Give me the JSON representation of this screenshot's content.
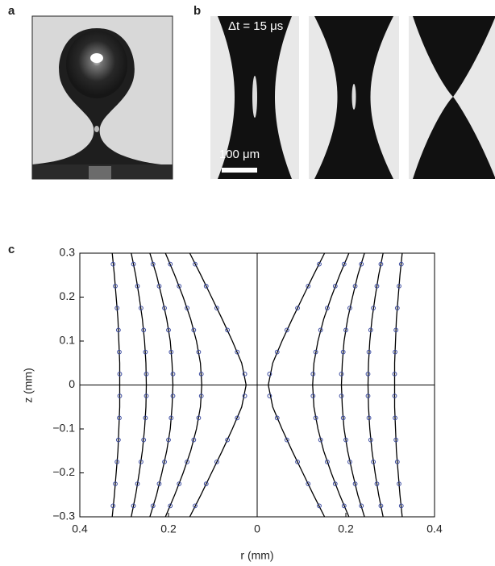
{
  "panels": {
    "a": {
      "label": "a"
    },
    "b": {
      "label": "b",
      "annotation": "Δt = 15 μs",
      "scale_bar": "100 μm"
    }
  },
  "chart_data": {
    "type": "scatter",
    "label": "c",
    "x_label": "r (mm)",
    "y_label": "z (mm)",
    "xlim": [
      -0.4,
      0.4
    ],
    "ylim": [
      -0.3,
      0.3
    ],
    "xticks": [
      {
        "value": -0.4,
        "label": "0.4"
      },
      {
        "value": -0.2,
        "label": "0.2"
      },
      0,
      0.2,
      0.4
    ],
    "yticks": [
      {
        "value": -0.3,
        "label": "−0.3"
      },
      {
        "value": -0.2,
        "label": "−0.2"
      },
      {
        "value": -0.1,
        "label": "−0.1"
      },
      0,
      0.1,
      0.2,
      0.3
    ],
    "grid": false,
    "series": [
      {
        "style": "line",
        "color": "#000000",
        "x": [
          -0.152,
          -0.127,
          -0.103,
          -0.079,
          -0.056,
          -0.035,
          -0.025,
          -0.035,
          -0.056,
          -0.079,
          -0.103,
          -0.127,
          -0.152
        ],
        "y": [
          -0.3,
          -0.25,
          -0.2,
          -0.15,
          -0.1,
          -0.05,
          0,
          0.05,
          0.1,
          0.15,
          0.2,
          0.25,
          0.3
        ]
      },
      {
        "style": "line",
        "color": "#000000",
        "x": [
          -0.207,
          -0.186,
          -0.167,
          -0.15,
          -0.137,
          -0.128,
          -0.125,
          -0.128,
          -0.137,
          -0.15,
          -0.167,
          -0.186,
          -0.207
        ],
        "y": [
          -0.3,
          -0.25,
          -0.2,
          -0.15,
          -0.1,
          -0.05,
          0,
          0.05,
          0.1,
          0.15,
          0.2,
          0.25,
          0.3
        ]
      },
      {
        "style": "line",
        "color": "#000000",
        "x": [
          -0.242,
          -0.227,
          -0.215,
          -0.204,
          -0.196,
          -0.192,
          -0.19,
          -0.192,
          -0.196,
          -0.204,
          -0.215,
          -0.227,
          -0.242
        ],
        "y": [
          -0.3,
          -0.25,
          -0.2,
          -0.15,
          -0.1,
          -0.05,
          0,
          0.05,
          0.1,
          0.15,
          0.2,
          0.25,
          0.3
        ]
      },
      {
        "style": "line",
        "color": "#000000",
        "x": [
          -0.284,
          -0.274,
          -0.266,
          -0.259,
          -0.254,
          -0.251,
          -0.25,
          -0.251,
          -0.254,
          -0.259,
          -0.266,
          -0.274,
          -0.284
        ],
        "y": [
          -0.3,
          -0.25,
          -0.2,
          -0.15,
          -0.1,
          -0.05,
          0,
          0.05,
          0.1,
          0.15,
          0.2,
          0.25,
          0.3
        ]
      },
      {
        "style": "line",
        "color": "#000000",
        "x": [
          -0.327,
          -0.322,
          -0.318,
          -0.314,
          -0.312,
          -0.31,
          -0.31,
          -0.31,
          -0.312,
          -0.314,
          -0.318,
          -0.322,
          -0.327
        ],
        "y": [
          -0.3,
          -0.25,
          -0.2,
          -0.15,
          -0.1,
          -0.05,
          0,
          0.05,
          0.1,
          0.15,
          0.2,
          0.25,
          0.3
        ]
      },
      {
        "style": "line",
        "color": "#000000",
        "x": [
          0.152,
          0.127,
          0.103,
          0.079,
          0.056,
          0.035,
          0.025,
          0.035,
          0.056,
          0.079,
          0.103,
          0.127,
          0.152
        ],
        "y": [
          -0.3,
          -0.25,
          -0.2,
          -0.15,
          -0.1,
          -0.05,
          0,
          0.05,
          0.1,
          0.15,
          0.2,
          0.25,
          0.3
        ]
      },
      {
        "style": "line",
        "color": "#000000",
        "x": [
          0.207,
          0.186,
          0.167,
          0.15,
          0.137,
          0.128,
          0.125,
          0.128,
          0.137,
          0.15,
          0.167,
          0.186,
          0.207
        ],
        "y": [
          -0.3,
          -0.25,
          -0.2,
          -0.15,
          -0.1,
          -0.05,
          0,
          0.05,
          0.1,
          0.15,
          0.2,
          0.25,
          0.3
        ]
      },
      {
        "style": "line",
        "color": "#000000",
        "x": [
          0.242,
          0.227,
          0.215,
          0.204,
          0.196,
          0.192,
          0.19,
          0.192,
          0.196,
          0.204,
          0.215,
          0.227,
          0.242
        ],
        "y": [
          -0.3,
          -0.25,
          -0.2,
          -0.15,
          -0.1,
          -0.05,
          0,
          0.05,
          0.1,
          0.15,
          0.2,
          0.25,
          0.3
        ]
      },
      {
        "style": "line",
        "color": "#000000",
        "x": [
          0.284,
          0.274,
          0.266,
          0.259,
          0.254,
          0.251,
          0.25,
          0.251,
          0.254,
          0.259,
          0.266,
          0.274,
          0.284
        ],
        "y": [
          -0.3,
          -0.25,
          -0.2,
          -0.15,
          -0.1,
          -0.05,
          0,
          0.05,
          0.1,
          0.15,
          0.2,
          0.25,
          0.3
        ]
      },
      {
        "style": "line",
        "color": "#000000",
        "x": [
          0.327,
          0.322,
          0.318,
          0.314,
          0.312,
          0.31,
          0.31,
          0.31,
          0.312,
          0.314,
          0.318,
          0.322,
          0.327
        ],
        "y": [
          -0.3,
          -0.25,
          -0.2,
          -0.15,
          -0.1,
          -0.05,
          0,
          0.05,
          0.1,
          0.15,
          0.2,
          0.25,
          0.3
        ]
      },
      {
        "style": "marker",
        "color": "#3b4ba0",
        "x": [
          -0.14,
          -0.115,
          -0.091,
          -0.067,
          -0.045,
          -0.028,
          -0.028,
          -0.045,
          -0.067,
          -0.091,
          -0.115,
          -0.14
        ],
        "y": [
          -0.275,
          -0.225,
          -0.175,
          -0.125,
          -0.075,
          -0.025,
          0.025,
          0.075,
          0.125,
          0.175,
          0.225,
          0.275
        ]
      },
      {
        "style": "marker",
        "color": "#3b4ba0",
        "x": [
          -0.196,
          -0.176,
          -0.158,
          -0.143,
          -0.132,
          -0.126,
          -0.126,
          -0.132,
          -0.143,
          -0.158,
          -0.176,
          -0.196
        ],
        "y": [
          -0.275,
          -0.225,
          -0.175,
          -0.125,
          -0.075,
          -0.025,
          0.025,
          0.075,
          0.125,
          0.175,
          0.225,
          0.275
        ]
      },
      {
        "style": "marker",
        "color": "#3b4ba0",
        "x": [
          -0.235,
          -0.221,
          -0.209,
          -0.2,
          -0.194,
          -0.19,
          -0.19,
          -0.194,
          -0.2,
          -0.209,
          -0.221,
          -0.235
        ],
        "y": [
          -0.275,
          -0.225,
          -0.175,
          -0.125,
          -0.075,
          -0.025,
          0.025,
          0.075,
          0.125,
          0.175,
          0.225,
          0.275
        ]
      },
      {
        "style": "marker",
        "color": "#3b4ba0",
        "x": [
          -0.279,
          -0.27,
          -0.262,
          -0.256,
          -0.252,
          -0.25,
          -0.25,
          -0.252,
          -0.256,
          -0.262,
          -0.27,
          -0.279
        ],
        "y": [
          -0.275,
          -0.225,
          -0.175,
          -0.125,
          -0.075,
          -0.025,
          0.025,
          0.075,
          0.125,
          0.175,
          0.225,
          0.275
        ]
      },
      {
        "style": "marker",
        "color": "#3b4ba0",
        "x": [
          -0.325,
          -0.32,
          -0.316,
          -0.313,
          -0.311,
          -0.31,
          -0.31,
          -0.311,
          -0.313,
          -0.316,
          -0.32,
          -0.325
        ],
        "y": [
          -0.275,
          -0.225,
          -0.175,
          -0.125,
          -0.075,
          -0.025,
          0.025,
          0.075,
          0.125,
          0.175,
          0.225,
          0.275
        ]
      },
      {
        "style": "marker",
        "color": "#3b4ba0",
        "x": [
          0.14,
          0.115,
          0.091,
          0.067,
          0.045,
          0.028,
          0.028,
          0.045,
          0.067,
          0.091,
          0.115,
          0.14
        ],
        "y": [
          -0.275,
          -0.225,
          -0.175,
          -0.125,
          -0.075,
          -0.025,
          0.025,
          0.075,
          0.125,
          0.175,
          0.225,
          0.275
        ]
      },
      {
        "style": "marker",
        "color": "#3b4ba0",
        "x": [
          0.196,
          0.176,
          0.158,
          0.143,
          0.132,
          0.126,
          0.126,
          0.132,
          0.143,
          0.158,
          0.176,
          0.196
        ],
        "y": [
          -0.275,
          -0.225,
          -0.175,
          -0.125,
          -0.075,
          -0.025,
          0.025,
          0.075,
          0.125,
          0.175,
          0.225,
          0.275
        ]
      },
      {
        "style": "marker",
        "color": "#3b4ba0",
        "x": [
          0.235,
          0.221,
          0.209,
          0.2,
          0.194,
          0.19,
          0.19,
          0.194,
          0.2,
          0.209,
          0.221,
          0.235
        ],
        "y": [
          -0.275,
          -0.225,
          -0.175,
          -0.125,
          -0.075,
          -0.025,
          0.025,
          0.075,
          0.125,
          0.175,
          0.225,
          0.275
        ]
      },
      {
        "style": "marker",
        "color": "#3b4ba0",
        "x": [
          0.279,
          0.27,
          0.262,
          0.256,
          0.252,
          0.25,
          0.25,
          0.252,
          0.256,
          0.262,
          0.27,
          0.279
        ],
        "y": [
          -0.275,
          -0.225,
          -0.175,
          -0.125,
          -0.075,
          -0.025,
          0.025,
          0.075,
          0.125,
          0.175,
          0.225,
          0.275
        ]
      },
      {
        "style": "marker",
        "color": "#3b4ba0",
        "x": [
          0.325,
          0.32,
          0.316,
          0.313,
          0.311,
          0.31,
          0.31,
          0.311,
          0.313,
          0.316,
          0.32,
          0.325
        ],
        "y": [
          -0.275,
          -0.225,
          -0.175,
          -0.125,
          -0.075,
          -0.025,
          0.025,
          0.075,
          0.125,
          0.175,
          0.225,
          0.275
        ]
      }
    ]
  }
}
